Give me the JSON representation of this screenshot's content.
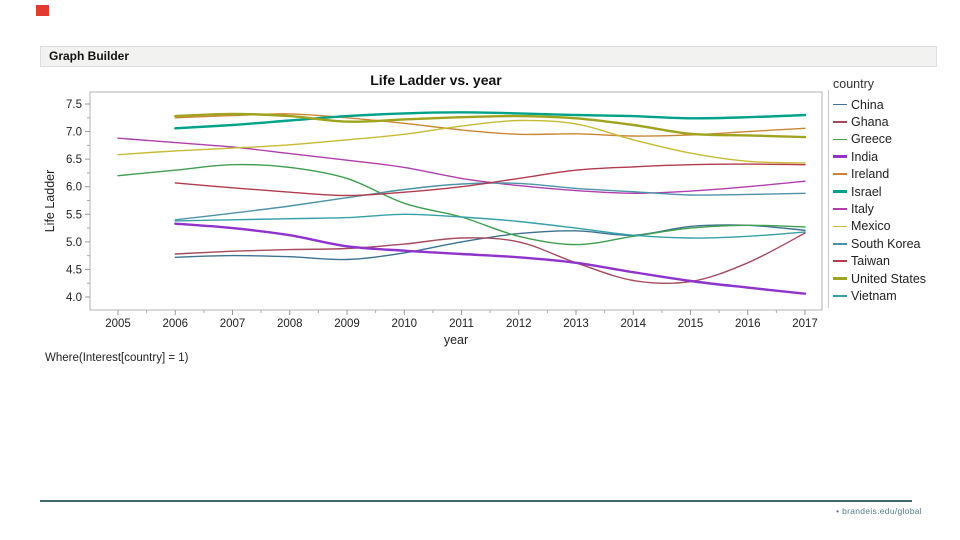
{
  "window": {
    "title": "Graph Builder"
  },
  "where_clause": "Where(Interest[country] = 1)",
  "footer": {
    "bullet": "•",
    "link": "brandeis.edu/global",
    "line_color": "#3f6a74",
    "accent_square_color": "#e23a2e"
  },
  "chart_data": {
    "type": "line",
    "title": "Life Ladder vs. year",
    "xlabel": "year",
    "ylabel": "Life Ladder",
    "legend_title": "country",
    "legend_position": "right",
    "grid": false,
    "x": [
      2005,
      2006,
      2007,
      2008,
      2009,
      2010,
      2011,
      2012,
      2013,
      2014,
      2015,
      2016,
      2017
    ],
    "ylim": [
      3.76,
      7.72
    ],
    "ytick_labels": [
      "4.0",
      "4.5",
      "5.0",
      "5.5",
      "6.0",
      "6.5",
      "7.0",
      "7.5"
    ],
    "yticks": [
      4.0,
      4.5,
      5.0,
      5.5,
      6.0,
      6.5,
      7.0,
      7.5
    ],
    "series": [
      {
        "name": "China",
        "color": "#3d7291",
        "width": 1.4,
        "values": [
          null,
          4.72,
          4.75,
          4.73,
          4.68,
          4.8,
          5.0,
          5.15,
          5.2,
          5.12,
          5.28,
          5.3,
          5.21
        ]
      },
      {
        "name": "Ghana",
        "color": "#a64a5e",
        "width": 1.4,
        "values": [
          null,
          4.78,
          4.83,
          4.86,
          4.88,
          4.96,
          5.07,
          5.0,
          4.62,
          4.3,
          4.28,
          4.62,
          5.16
        ]
      },
      {
        "name": "Greece",
        "color": "#3f9e4f",
        "width": 1.4,
        "values": [
          6.2,
          6.3,
          6.4,
          6.35,
          6.15,
          5.7,
          5.45,
          5.1,
          4.95,
          5.1,
          5.25,
          5.3,
          5.27
        ]
      },
      {
        "name": "India",
        "color": "#8f33cc",
        "width": 2.4,
        "values": [
          null,
          5.33,
          5.25,
          5.12,
          4.92,
          4.84,
          4.78,
          4.72,
          4.62,
          4.45,
          4.29,
          4.17,
          4.06
        ]
      },
      {
        "name": "Ireland",
        "color": "#cc8633",
        "width": 1.4,
        "values": [
          null,
          7.25,
          7.29,
          7.32,
          7.25,
          7.15,
          7.03,
          6.95,
          6.96,
          6.92,
          6.94,
          7.0,
          7.06
        ]
      },
      {
        "name": "Israel",
        "color": "#00a389",
        "width": 2.4,
        "values": [
          null,
          7.06,
          7.12,
          7.2,
          7.28,
          7.33,
          7.35,
          7.33,
          7.3,
          7.28,
          7.24,
          7.26,
          7.3
        ]
      },
      {
        "name": "Italy",
        "color": "#b13dae",
        "width": 1.4,
        "values": [
          6.88,
          6.8,
          6.72,
          6.6,
          6.48,
          6.35,
          6.15,
          6.02,
          5.93,
          5.88,
          5.92,
          6.0,
          6.1
        ]
      },
      {
        "name": "Mexico",
        "color": "#c7bb33",
        "width": 1.4,
        "values": [
          6.58,
          6.65,
          6.7,
          6.76,
          6.85,
          6.95,
          7.1,
          7.2,
          7.14,
          6.85,
          6.61,
          6.46,
          6.43
        ]
      },
      {
        "name": "South Korea",
        "color": "#4d93a8",
        "width": 1.4,
        "values": [
          null,
          5.4,
          5.52,
          5.65,
          5.8,
          5.95,
          6.05,
          6.06,
          5.97,
          5.91,
          5.85,
          5.86,
          5.88
        ]
      },
      {
        "name": "Taiwan",
        "color": "#b23b4e",
        "width": 1.4,
        "values": [
          null,
          6.07,
          5.98,
          5.9,
          5.84,
          5.9,
          6.0,
          6.15,
          6.3,
          6.36,
          6.4,
          6.41,
          6.4
        ]
      },
      {
        "name": "United States",
        "color": "#a0a31d",
        "width": 2.4,
        "values": [
          null,
          7.28,
          7.32,
          7.28,
          7.18,
          7.22,
          7.26,
          7.28,
          7.24,
          7.12,
          6.96,
          6.93,
          6.9
        ]
      },
      {
        "name": "Vietnam",
        "color": "#35a0a8",
        "width": 1.4,
        "values": [
          null,
          5.38,
          5.4,
          5.42,
          5.44,
          5.5,
          5.45,
          5.37,
          5.25,
          5.12,
          5.07,
          5.1,
          5.18
        ]
      }
    ]
  }
}
